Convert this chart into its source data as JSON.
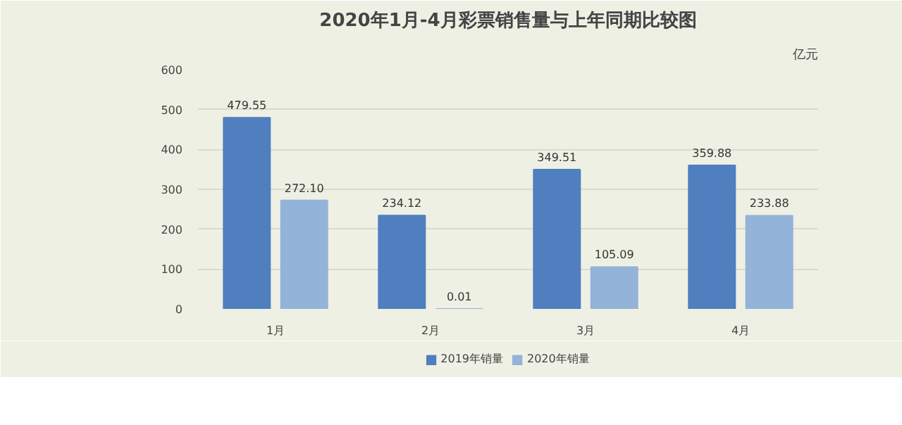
{
  "chart_data": {
    "type": "bar",
    "title": "2020年1月-4月彩票销售量与上年同期比较图",
    "ylabel": "亿元",
    "categories": [
      "1月",
      "2月",
      "3月",
      "4月"
    ],
    "series": [
      {
        "name": "2019年销量",
        "color": "#4f7fbf",
        "values": [
          479.55,
          234.12,
          349.51,
          359.88
        ],
        "value_labels": [
          "479.55",
          "234.12",
          "349.51",
          "359.88"
        ]
      },
      {
        "name": "2020年销量",
        "color": "#94b3d8",
        "values": [
          272.1,
          0.01,
          105.09,
          233.88
        ],
        "value_labels": [
          "272.10",
          "0.01",
          "105.09",
          "233.88"
        ]
      }
    ],
    "ylim": [
      0,
      600
    ],
    "yticks": [
      0,
      100,
      200,
      300,
      400,
      500,
      600
    ],
    "grid": "y",
    "legend": "bottom"
  }
}
